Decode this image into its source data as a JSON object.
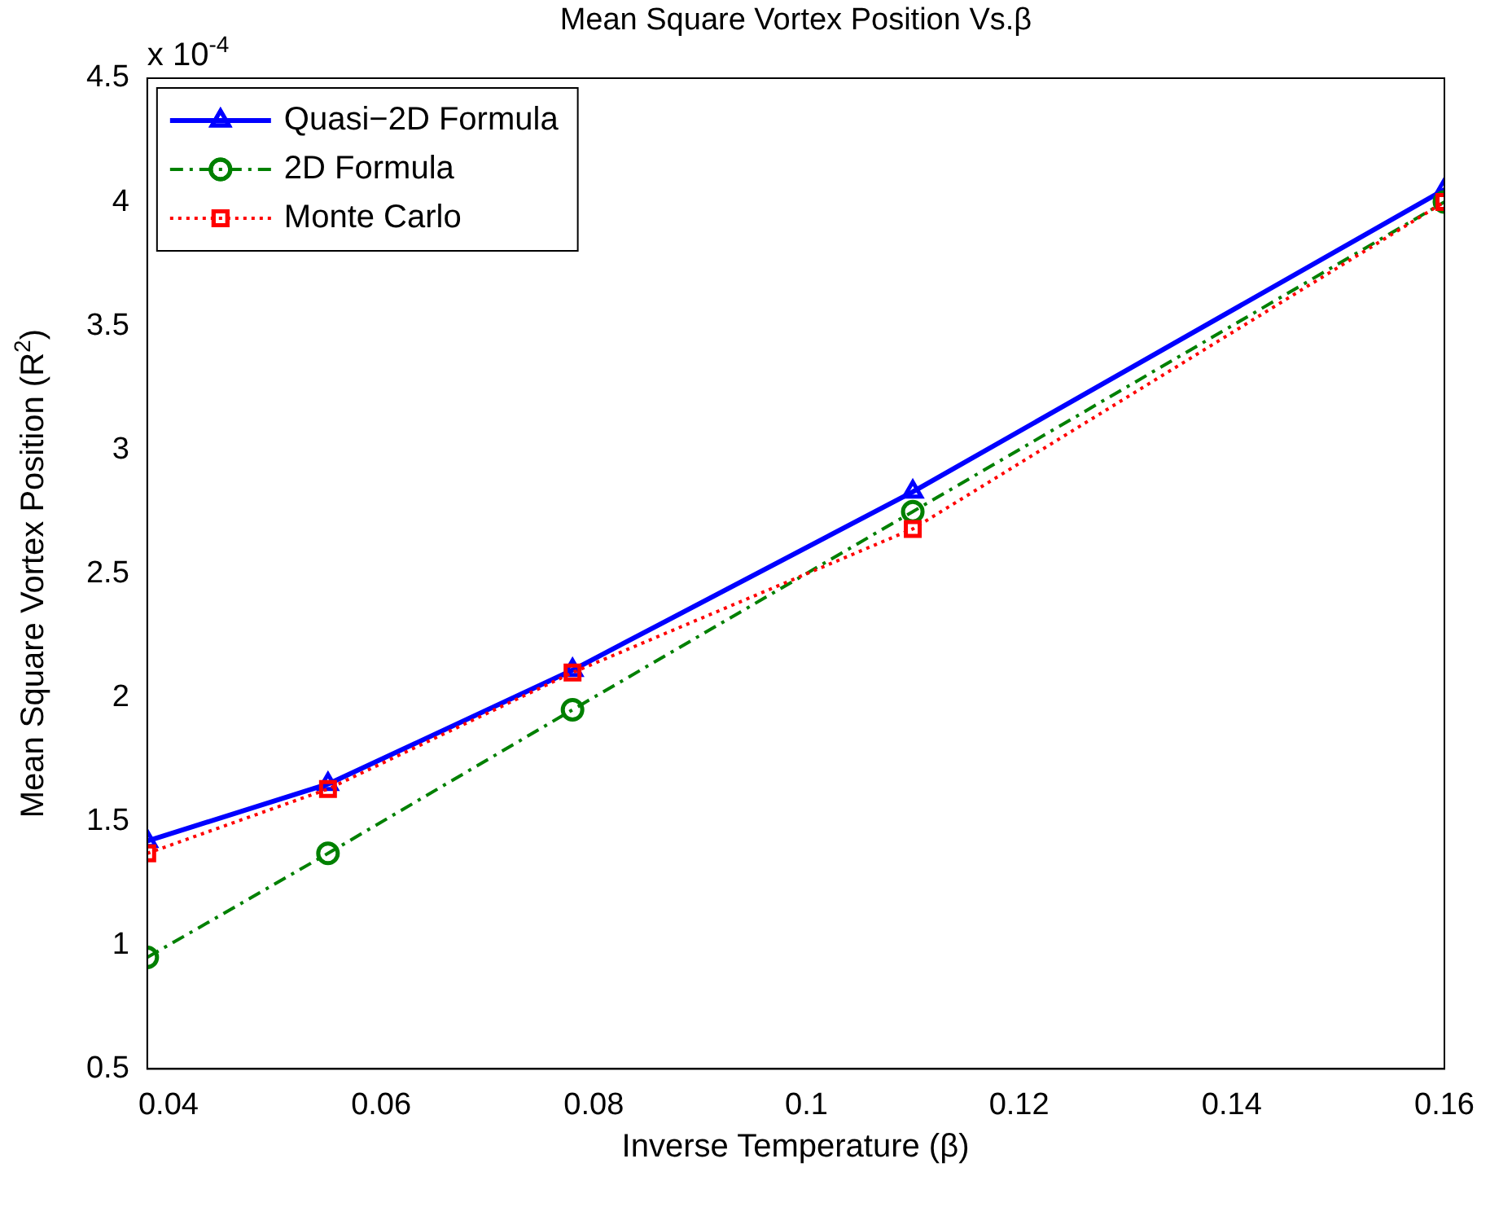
{
  "chart_data": {
    "type": "line",
    "title": "Mean Square Vortex Position Vs.β",
    "xlabel": "Inverse Temperature (β)",
    "ylabel": "Mean Square Vortex Position (R$^{2}$)",
    "annotations": [
      "x 10$^{-4}$"
    ],
    "x": [
      0.038,
      0.055,
      0.078,
      0.11,
      0.16
    ],
    "series": [
      {
        "name": "Quasi−2D Formula",
        "color": "#0000ff",
        "values": [
          1.42,
          1.65,
          2.11,
          2.83,
          4.05
        ],
        "marker": "triangle",
        "line_style": "solid"
      },
      {
        "name": "2D Formula",
        "color": "#008000",
        "values": [
          0.95,
          1.37,
          1.95,
          2.75,
          4.0
        ],
        "marker": "circle",
        "line_style": "dashed"
      },
      {
        "name": "Monte Carlo",
        "color": "#ff0000",
        "values": [
          1.37,
          1.63,
          2.1,
          2.68,
          4.0
        ],
        "marker": "square",
        "line_style": "dotted"
      }
    ],
    "xlim": [
      0.038,
      0.16
    ],
    "xticks": [
      0.04,
      0.06,
      0.08,
      0.1,
      0.12,
      0.14,
      0.16
    ],
    "ylim": [
      0.5,
      4.5
    ],
    "yticks": [
      0.5,
      1,
      1.5,
      2,
      2.5,
      3,
      3.5,
      4,
      4.5
    ],
    "grid": false,
    "legend": "top left"
  }
}
